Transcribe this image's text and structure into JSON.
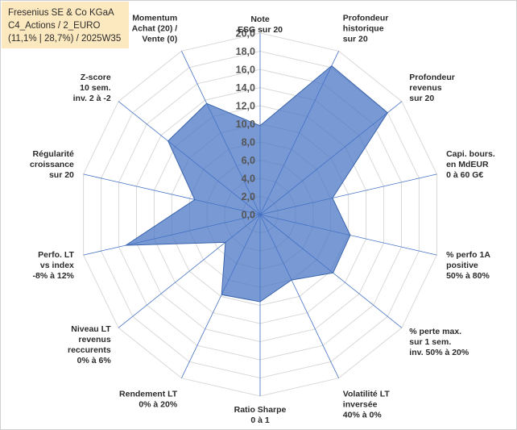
{
  "info": {
    "line1": "Fresenius SE & Co KGaA",
    "line2": "C4_Actions / 2_EURO",
    "line3": "(11,1% | 28,7%) / 2025W35"
  },
  "colors": {
    "fill": "#4472c4",
    "grid": "#d9d9d9",
    "axis": "#4472c4"
  },
  "chart_data": {
    "type": "radar",
    "rlim": [
      0,
      20
    ],
    "ticks": [
      "0,0",
      "2,0",
      "4,0",
      "6,0",
      "8,0",
      "10,0",
      "12,0",
      "14,0",
      "16,0",
      "18,0",
      "20,0"
    ],
    "axes": [
      [
        "Note",
        "ESG sur 20"
      ],
      [
        "Profondeur",
        "historique",
        "sur 20"
      ],
      [
        "Profondeur",
        "revenus",
        "sur 20"
      ],
      [
        "Capi. bours.",
        "en MdEUR",
        "0 à 60 G€"
      ],
      [
        "% perfo 1A",
        "positive",
        "50% à 80%"
      ],
      [
        "% perte max.",
        "sur 1 sem.",
        "inv. 50% à 20%"
      ],
      [
        "Volatilité LT",
        "inversée",
        "40% à 0%"
      ],
      [
        "Ratio Sharpe",
        "0 à 1"
      ],
      [
        "Rendement LT",
        "0% à 20%"
      ],
      [
        "Niveau LT",
        "revenus",
        "reccurents",
        "0% à 6%"
      ],
      [
        "Perfo. LT",
        "vs index",
        "-8% à 12%"
      ],
      [
        "Régularité",
        "croissance",
        "sur 20"
      ],
      [
        "Z-score",
        "10 sem.",
        "inv. 2 à -2"
      ],
      [
        "Momentum",
        "Achat (20) /",
        "Vente (0)"
      ]
    ],
    "values": [
      9.8,
      18.2,
      18.0,
      8.2,
      10.2,
      10.3,
      8.0,
      9.6,
      9.8,
      4.9,
      15.2,
      7.4,
      13.0,
      13.6
    ],
    "grid": true,
    "legend": "none"
  }
}
